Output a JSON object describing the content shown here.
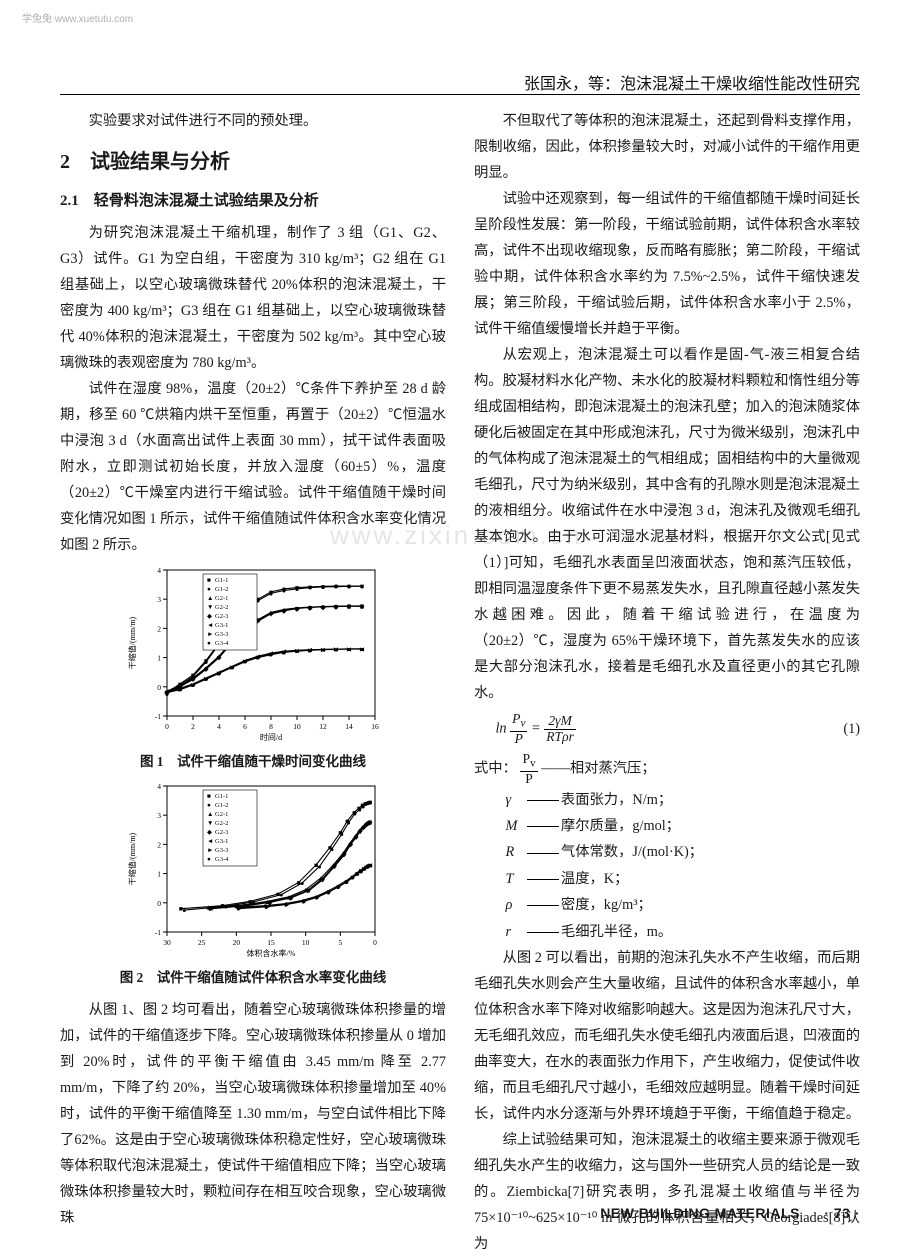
{
  "watermark_top": "学兔兔 www.xuetutu.com",
  "header_title": "张国永，等：泡沫混凝土干燥收缩性能改性研究",
  "center_watermark": "www.zixin.com.cn",
  "left_column": {
    "p1": "实验要求对试件进行不同的预处理。",
    "sec2": "2　试验结果与分析",
    "sub21": "2.1　轻骨料泡沫混凝土试验结果及分析",
    "p2": "为研究泡沫混凝土干缩机理，制作了 3 组（G1、G2、G3）试件。G1 为空白组，干密度为 310 kg/m³；G2 组在 G1 组基础上，以空心玻璃微珠替代 20%体积的泡沫混凝土，干密度为 400 kg/m³；G3 组在 G1 组基础上，以空心玻璃微珠替代 40%体积的泡沫混凝土，干密度为 502 kg/m³。其中空心玻璃微珠的表观密度为 780 kg/m³。",
    "p3": "试件在湿度 98%，温度（20±2）℃条件下养护至 28 d 龄期，移至 60 ℃烘箱内烘干至恒重，再置于（20±2）℃恒温水中浸泡 3 d（水面高出试件上表面 30 mm），拭干试件表面吸附水，立即测试初始长度，并放入湿度（60±5）%，温度（20±2）℃干燥室内进行干缩试验。试件干缩值随干燥时间变化情况如图 1 所示，试件干缩值随试件体积含水率变化情况如图 2 所示。",
    "fig1_cap": "图 1　试件干缩值随干燥时间变化曲线",
    "fig2_cap": "图 2　试件干缩值随试件体积含水率变化曲线",
    "p4": "从图 1、图 2 均可看出，随着空心玻璃微珠体积掺量的增加，试件的干缩值逐步下降。空心玻璃微珠体积掺量从 0 增加到 20%时，试件的平衡干缩值由 3.45 mm/m 降至 2.77 mm/m，下降了约 20%，当空心玻璃微珠体积掺量增加至 40%时，试件的平衡干缩值降至 1.30 mm/m，与空白试件相比下降了62%。这是由于空心玻璃微珠体积稳定性好，空心玻璃微珠等体积取代泡沫混凝土，使试件干缩值相应下降；当空心玻璃微珠体积掺量较大时，颗粒间存在相互咬合现象，空心玻璃微珠"
  },
  "right_column": {
    "p1": "不但取代了等体积的泡沫混凝土，还起到骨料支撑作用，限制收缩，因此，体积掺量较大时，对减小试件的干缩作用更明显。",
    "p2": "试验中还观察到，每一组试件的干缩值都随干燥时间延长呈阶段性发展：第一阶段，干缩试验前期，试件体积含水率较高，试件不出现收缩现象，反而略有膨胀；第二阶段，干缩试验中期，试件体积含水率约为 7.5%~2.5%，试件干缩快速发展；第三阶段，干缩试验后期，试件体积含水率小于 2.5%，试件干缩值缓慢增长并趋于平衡。",
    "p3": "从宏观上，泡沫混凝土可以看作是固-气-液三相复合结构。胶凝材料水化产物、未水化的胶凝材料颗粒和惰性组分等组成固相结构，即泡沫混凝土的泡沫孔壁；加入的泡沫随浆体硬化后被固定在其中形成泡沫孔，尺寸为微米级别，泡沫孔中的气体构成了泡沫混凝土的气相组成；固相结构中的大量微观毛细孔，尺寸为纳米级别，其中含有的孔隙水则是泡沫混凝土的液相组分。收缩试件在水中浸泡 3 d，泡沫孔及微观毛细孔基本饱水。由于水可润湿水泥基材料，根据开尔文公式[见式（1）]可知，毛细孔水表面呈凹液面状态，饱和蒸汽压较低，即相同温湿度条件下更不易蒸发失水，且孔隙直径越小蒸发失水越困难。因此，随着干缩试验进行，在温度为（20±2）℃，湿度为 65%干燥环境下，首先蒸发失水的应该是大部分泡沫孔水，接着是毛细孔水及直径更小的其它孔隙水。",
    "eq1_lhs": "ln",
    "eq1_num": "(1)",
    "eq_where": "式中：",
    "var_pv": "——相对蒸汽压；",
    "var_gamma": "γ",
    "var_gamma_txt": "表面张力，N/m；",
    "var_M": "M",
    "var_M_txt": "摩尔质量，g/mol；",
    "var_R": "R",
    "var_R_txt": "气体常数，J/(mol·K)；",
    "var_T": "T",
    "var_T_txt": "温度，K；",
    "var_rho": "ρ",
    "var_rho_txt": "密度，kg/m³；",
    "var_r": "r",
    "var_r_txt": "毛细孔半径，m。",
    "p4": "从图 2 可以看出，前期的泡沫孔失水不产生收缩，而后期毛细孔失水则会产生大量收缩，且试件的体积含水率越小，单位体积含水率下降对收缩影响越大。这是因为泡沫孔尺寸大，无毛细孔效应，而毛细孔失水使毛细孔内液面后退，凹液面的曲率变大，在水的表面张力作用下，产生收缩力，促使试件收缩，而且毛细孔尺寸越小，毛细效应越明显。随着干燥时间延长，试件内水分逐渐与外界环境趋于平衡，干缩值趋于稳定。",
    "p5": "综上试验结果可知，泡沫混凝土的收缩主要来源于微观毛细孔失水产生的收缩力，这与国外一些研究人员的结论是一致的。Ziembicka[7]研究表明，多孔混凝土收缩值与半径为75×10⁻¹⁰~625×10⁻¹⁰ m 微孔的体积含量相关，Georgiades[8]认为"
  },
  "figure1": {
    "type": "scatter-line",
    "xlabel": "时间/d",
    "ylabel": "干缩值/(mm/m)",
    "xlim": [
      0,
      16
    ],
    "xtick_step": 2,
    "ylim": [
      -1,
      4
    ],
    "ytick_step": 1,
    "background_color": "#ffffff",
    "grid": false,
    "axis_color": "#000000",
    "legend_pos": "top-right-inside",
    "label_fontsize": 8,
    "tick_fontsize": 7.5,
    "series": [
      {
        "name": "G1-1",
        "marker": "■",
        "color": "#000000",
        "x": [
          0,
          1,
          2,
          3,
          4,
          5,
          6,
          7,
          8,
          9,
          10,
          11,
          12,
          13,
          14,
          15
        ],
        "y": [
          -0.2,
          0.1,
          0.4,
          0.9,
          1.5,
          2.1,
          2.6,
          3.0,
          3.25,
          3.35,
          3.4,
          3.42,
          3.44,
          3.45,
          3.45,
          3.45
        ]
      },
      {
        "name": "G1-2",
        "marker": "●",
        "color": "#000000",
        "x": [
          0,
          1,
          2,
          3,
          4,
          5,
          6,
          7,
          8,
          9,
          10,
          11,
          12,
          13,
          14,
          15
        ],
        "y": [
          -0.25,
          0.05,
          0.35,
          0.85,
          1.45,
          2.05,
          2.55,
          2.95,
          3.2,
          3.3,
          3.35,
          3.4,
          3.42,
          3.43,
          3.44,
          3.44
        ]
      },
      {
        "name": "G2-1",
        "marker": "▲",
        "color": "#000000",
        "x": [
          0,
          1,
          2,
          3,
          4,
          5,
          6,
          7,
          8,
          9,
          10,
          11,
          12,
          13,
          14,
          15
        ],
        "y": [
          -0.15,
          0.05,
          0.3,
          0.65,
          1.05,
          1.55,
          2.0,
          2.3,
          2.55,
          2.65,
          2.7,
          2.73,
          2.75,
          2.76,
          2.77,
          2.77
        ]
      },
      {
        "name": "G2-2",
        "marker": "▼",
        "color": "#000000",
        "x": [
          0,
          1,
          2,
          3,
          4,
          5,
          6,
          7,
          8,
          9,
          10,
          11,
          12,
          13,
          14,
          15
        ],
        "y": [
          -0.2,
          0.0,
          0.25,
          0.6,
          1.0,
          1.5,
          1.95,
          2.25,
          2.5,
          2.6,
          2.68,
          2.72,
          2.74,
          2.75,
          2.76,
          2.76
        ]
      },
      {
        "name": "G2-3",
        "marker": "◆",
        "color": "#000000",
        "x": [
          0,
          1,
          2,
          3,
          4,
          5,
          6,
          7,
          8,
          9,
          10,
          11,
          12,
          13,
          14,
          15
        ],
        "y": [
          -0.18,
          0.02,
          0.28,
          0.62,
          1.02,
          1.52,
          1.98,
          2.28,
          2.52,
          2.62,
          2.69,
          2.72,
          2.74,
          2.75,
          2.76,
          2.76
        ]
      },
      {
        "name": "G3-1",
        "marker": "◄",
        "color": "#000000",
        "x": [
          0,
          1,
          2,
          3,
          4,
          5,
          6,
          7,
          8,
          9,
          10,
          11,
          12,
          13,
          14,
          15
        ],
        "y": [
          -0.15,
          -0.05,
          0.1,
          0.3,
          0.5,
          0.7,
          0.9,
          1.05,
          1.15,
          1.22,
          1.25,
          1.27,
          1.28,
          1.29,
          1.3,
          1.3
        ]
      },
      {
        "name": "G3-3",
        "marker": "►",
        "color": "#000000",
        "x": [
          0,
          1,
          2,
          3,
          4,
          5,
          6,
          7,
          8,
          9,
          10,
          11,
          12,
          13,
          14,
          15
        ],
        "y": [
          -0.18,
          -0.08,
          0.08,
          0.28,
          0.48,
          0.68,
          0.88,
          1.02,
          1.12,
          1.2,
          1.24,
          1.26,
          1.28,
          1.29,
          1.29,
          1.3
        ]
      },
      {
        "name": "G3-4",
        "marker": "●",
        "color": "#000000",
        "x": [
          0,
          1,
          2,
          3,
          4,
          5,
          6,
          7,
          8,
          9,
          10,
          11,
          12,
          13,
          14,
          15
        ],
        "y": [
          -0.2,
          -0.1,
          0.06,
          0.26,
          0.46,
          0.66,
          0.86,
          1.0,
          1.1,
          1.18,
          1.22,
          1.25,
          1.27,
          1.28,
          1.29,
          1.29
        ]
      }
    ]
  },
  "figure2": {
    "type": "scatter-line",
    "xlabel": "体积含水率/%",
    "ylabel": "干缩值/(mm/m)",
    "xlim": [
      30,
      0
    ],
    "xtick_step": 5,
    "x_reversed": true,
    "ylim": [
      -1,
      4
    ],
    "ytick_step": 1,
    "background_color": "#ffffff",
    "grid": false,
    "axis_color": "#000000",
    "legend_pos": "top-right-inside",
    "label_fontsize": 8,
    "tick_fontsize": 7.5,
    "series": [
      {
        "name": "G1-1",
        "marker": "■",
        "color": "#000000",
        "x": [
          28,
          22,
          18,
          14,
          11,
          8.5,
          6.5,
          5,
          4,
          3,
          2.3,
          1.8,
          1.4,
          1.1,
          0.9,
          0.7
        ],
        "y": [
          -0.2,
          -0.1,
          0.05,
          0.3,
          0.7,
          1.3,
          1.9,
          2.4,
          2.8,
          3.1,
          3.25,
          3.35,
          3.4,
          3.42,
          3.44,
          3.45
        ]
      },
      {
        "name": "G1-2",
        "marker": "●",
        "color": "#000000",
        "x": [
          27.5,
          21.5,
          17.5,
          13.5,
          10.5,
          8,
          6.2,
          4.8,
          3.8,
          2.9,
          2.2,
          1.7,
          1.3,
          1.05,
          0.85,
          0.65
        ],
        "y": [
          -0.25,
          -0.12,
          0.03,
          0.28,
          0.68,
          1.25,
          1.85,
          2.35,
          2.75,
          3.05,
          3.2,
          3.3,
          3.38,
          3.41,
          3.43,
          3.44
        ]
      },
      {
        "name": "G2-1",
        "marker": "▲",
        "color": "#000000",
        "x": [
          24,
          19,
          15.5,
          12.5,
          10,
          7.8,
          6,
          4.6,
          3.6,
          2.8,
          2.2,
          1.7,
          1.35,
          1.1,
          0.9,
          0.75
        ],
        "y": [
          -0.15,
          -0.08,
          0.05,
          0.2,
          0.45,
          0.85,
          1.3,
          1.7,
          2.05,
          2.3,
          2.5,
          2.62,
          2.7,
          2.74,
          2.76,
          2.77
        ]
      },
      {
        "name": "G2-2",
        "marker": "▼",
        "color": "#000000",
        "x": [
          23.5,
          18.5,
          15,
          12,
          9.5,
          7.5,
          5.8,
          4.4,
          3.5,
          2.7,
          2.1,
          1.65,
          1.3,
          1.05,
          0.87,
          0.72
        ],
        "y": [
          -0.2,
          -0.1,
          0.02,
          0.18,
          0.42,
          0.8,
          1.25,
          1.65,
          2.0,
          2.25,
          2.45,
          2.58,
          2.67,
          2.72,
          2.75,
          2.76
        ]
      },
      {
        "name": "G2-3",
        "marker": "◆",
        "color": "#000000",
        "x": [
          23.8,
          18.8,
          15.2,
          12.2,
          9.7,
          7.6,
          5.9,
          4.5,
          3.55,
          2.75,
          2.15,
          1.68,
          1.32,
          1.07,
          0.88,
          0.73
        ],
        "y": [
          -0.18,
          -0.09,
          0.03,
          0.19,
          0.43,
          0.82,
          1.27,
          1.67,
          2.02,
          2.27,
          2.47,
          2.6,
          2.68,
          2.73,
          2.75,
          2.76
        ]
      },
      {
        "name": "G3-1",
        "marker": "◄",
        "color": "#000000",
        "x": [
          20,
          16,
          13,
          10.5,
          8.5,
          6.8,
          5.4,
          4.2,
          3.3,
          2.6,
          2.05,
          1.6,
          1.28,
          1.03,
          0.85,
          0.7
        ],
        "y": [
          -0.15,
          -0.1,
          -0.03,
          0.08,
          0.22,
          0.4,
          0.58,
          0.75,
          0.9,
          1.03,
          1.13,
          1.2,
          1.25,
          1.27,
          1.29,
          1.3
        ]
      },
      {
        "name": "G3-3",
        "marker": "►",
        "color": "#000000",
        "x": [
          19.5,
          15.5,
          12.7,
          10.2,
          8.3,
          6.6,
          5.2,
          4.05,
          3.2,
          2.52,
          2.0,
          1.57,
          1.25,
          1.01,
          0.83,
          0.68
        ],
        "y": [
          -0.18,
          -0.12,
          -0.05,
          0.06,
          0.2,
          0.38,
          0.56,
          0.73,
          0.88,
          1.0,
          1.1,
          1.18,
          1.23,
          1.26,
          1.28,
          1.29
        ]
      },
      {
        "name": "G3-4",
        "marker": "●",
        "color": "#000000",
        "x": [
          19.7,
          15.7,
          12.8,
          10.3,
          8.4,
          6.7,
          5.3,
          4.1,
          3.25,
          2.55,
          2.02,
          1.58,
          1.26,
          1.02,
          0.84,
          0.69
        ],
        "y": [
          -0.2,
          -0.14,
          -0.06,
          0.05,
          0.18,
          0.36,
          0.54,
          0.71,
          0.86,
          0.98,
          1.08,
          1.16,
          1.22,
          1.25,
          1.27,
          1.29
        ]
      }
    ]
  },
  "footer": {
    "journal": "NEW BUILDING MATERIALS",
    "page": "· 73 ·"
  }
}
